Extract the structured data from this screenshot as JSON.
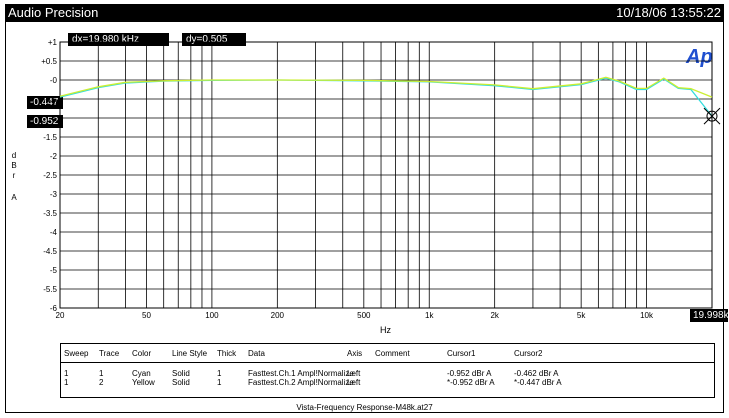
{
  "header": {
    "app_title": "Audio Precision",
    "timestamp": "10/18/06 13:55:22"
  },
  "cursor_readouts": {
    "dx": "dx=19.980 kHz",
    "dy": "dy=0.505  dB"
  },
  "logo_text": "Ap",
  "markers": {
    "cursor1_y": "-0.447",
    "cursor2_y": "-0.952",
    "cursor_x": "19.998k"
  },
  "y_unit_letters": [
    "d",
    "B",
    "r",
    "A"
  ],
  "x_unit": "Hz",
  "legend": {
    "headers": [
      "Sweep",
      "Trace",
      "Color",
      "Line Style",
      "Thick",
      "Data",
      "Axis",
      "Comment",
      "Cursor1",
      "Cursor2"
    ],
    "rows": [
      [
        "1",
        "1",
        "Cyan",
        "Solid",
        "1",
        "Fasttest.Ch.1 Ampl!Normalize",
        "Left",
        "",
        "-0.952  dBr A",
        "-0.462  dBr A"
      ],
      [
        "1",
        "2",
        "Yellow",
        "Solid",
        "1",
        "Fasttest.Ch.2 Ampl!Normalize",
        "Left",
        "",
        "*-0.952  dBr A",
        "*-0.447  dBr A"
      ]
    ]
  },
  "footer_text": "Vista-Frequency Response-M48k.at27",
  "colors": {
    "cyan_trace": "#33dddd",
    "yellow_trace": "#ccee33",
    "background": "#ffffff",
    "grid": "#000000"
  },
  "chart_data": {
    "type": "line",
    "xscale": "log",
    "xlim": [
      20,
      20000
    ],
    "ylim": [
      -6,
      1
    ],
    "x_ticks": [
      "20",
      "50",
      "100",
      "200",
      "500",
      "1k",
      "2k",
      "5k",
      "10k"
    ],
    "x_tick_values": [
      20,
      50,
      100,
      200,
      500,
      1000,
      2000,
      5000,
      10000
    ],
    "y_ticks": [
      "+1",
      "+0.5",
      "-0",
      "-0.5",
      "-1",
      "-1.5",
      "-2",
      "-2.5",
      "-3",
      "-3.5",
      "-4",
      "-4.5",
      "-5",
      "-5.5",
      "-6"
    ],
    "y_tick_values": [
      1,
      0.5,
      0,
      -0.5,
      -1,
      -1.5,
      -2,
      -2.5,
      -3,
      -3.5,
      -4,
      -4.5,
      -5,
      -5.5,
      -6
    ],
    "grid": true,
    "series": [
      {
        "color": "cyan",
        "x": [
          20,
          30,
          40,
          60,
          100,
          200,
          500,
          1000,
          2000,
          3000,
          5000,
          6500,
          7500,
          9000,
          10000,
          12000,
          14000,
          16000,
          19998
        ],
        "y": [
          -0.45,
          -0.2,
          -0.08,
          -0.03,
          -0.01,
          0.0,
          -0.02,
          -0.05,
          -0.15,
          -0.25,
          -0.12,
          0.05,
          -0.05,
          -0.25,
          -0.25,
          0.03,
          -0.22,
          -0.25,
          -0.95
        ]
      },
      {
        "color": "yellow",
        "x": [
          20,
          30,
          40,
          60,
          100,
          200,
          500,
          1000,
          2000,
          3000,
          5000,
          6500,
          7500,
          9000,
          10000,
          12000,
          14000,
          16000,
          19998
        ],
        "y": [
          -0.43,
          -0.18,
          -0.06,
          -0.02,
          0.0,
          0.0,
          -0.01,
          -0.04,
          -0.13,
          -0.23,
          -0.1,
          0.07,
          -0.03,
          -0.22,
          -0.22,
          0.05,
          -0.2,
          -0.23,
          -0.45
        ]
      }
    ]
  }
}
